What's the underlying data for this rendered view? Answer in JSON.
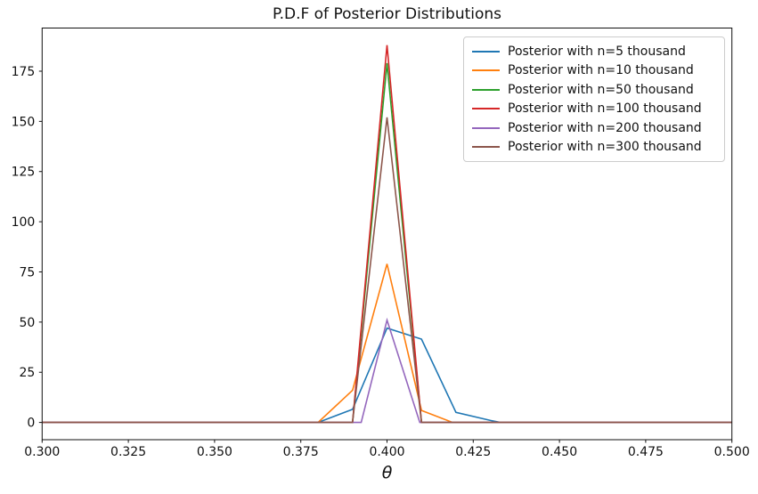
{
  "chart_data": {
    "type": "line",
    "title": "P.D.F of Posterior Distributions",
    "xlabel": "θ",
    "ylabel": "",
    "xlim": [
      0.3,
      0.5
    ],
    "ylim": [
      -8.6,
      196.5
    ],
    "x_tick_labels": [
      "0.300",
      "0.325",
      "0.350",
      "0.375",
      "0.400",
      "0.425",
      "0.450",
      "0.475",
      "0.500"
    ],
    "x_ticks": [
      0.3,
      0.325,
      0.35,
      0.375,
      0.4,
      0.425,
      0.45,
      0.475,
      0.5
    ],
    "y_ticks": [
      0,
      25,
      50,
      75,
      100,
      125,
      150,
      175
    ],
    "grid": false,
    "legend_position": "upper right",
    "series": [
      {
        "name": "Posterior with n=5 thousand",
        "color": "#1f77b4",
        "points": [
          [
            0.3,
            0
          ],
          [
            0.38,
            0
          ],
          [
            0.39,
            6.5
          ],
          [
            0.4,
            47
          ],
          [
            0.41,
            41.5
          ],
          [
            0.42,
            5
          ],
          [
            0.43,
            1
          ],
          [
            0.433,
            0
          ],
          [
            0.5,
            0
          ]
        ]
      },
      {
        "name": "Posterior with n=10 thousand",
        "color": "#ff7f0e",
        "points": [
          [
            0.3,
            0
          ],
          [
            0.38,
            0
          ],
          [
            0.39,
            16
          ],
          [
            0.4,
            79
          ],
          [
            0.41,
            6
          ],
          [
            0.419,
            0
          ],
          [
            0.5,
            0
          ]
        ]
      },
      {
        "name": "Posterior with n=50 thousand",
        "color": "#2ca02c",
        "points": [
          [
            0.3,
            0
          ],
          [
            0.39,
            0
          ],
          [
            0.4,
            179
          ],
          [
            0.41,
            0
          ],
          [
            0.5,
            0
          ]
        ]
      },
      {
        "name": "Posterior with n=100 thousand",
        "color": "#d62728",
        "points": [
          [
            0.3,
            0
          ],
          [
            0.39,
            0
          ],
          [
            0.4,
            188
          ],
          [
            0.41,
            0
          ],
          [
            0.5,
            0
          ]
        ]
      },
      {
        "name": "Posterior with n=200 thousand",
        "color": "#9467bd",
        "points": [
          [
            0.3,
            0
          ],
          [
            0.3925,
            0
          ],
          [
            0.4,
            51
          ],
          [
            0.4095,
            0
          ],
          [
            0.5,
            0
          ]
        ]
      },
      {
        "name": "Posterior with n=300 thousand",
        "color": "#8c564b",
        "points": [
          [
            0.3,
            0
          ],
          [
            0.39,
            0
          ],
          [
            0.4,
            152
          ],
          [
            0.41,
            0
          ],
          [
            0.5,
            0
          ]
        ]
      }
    ]
  }
}
